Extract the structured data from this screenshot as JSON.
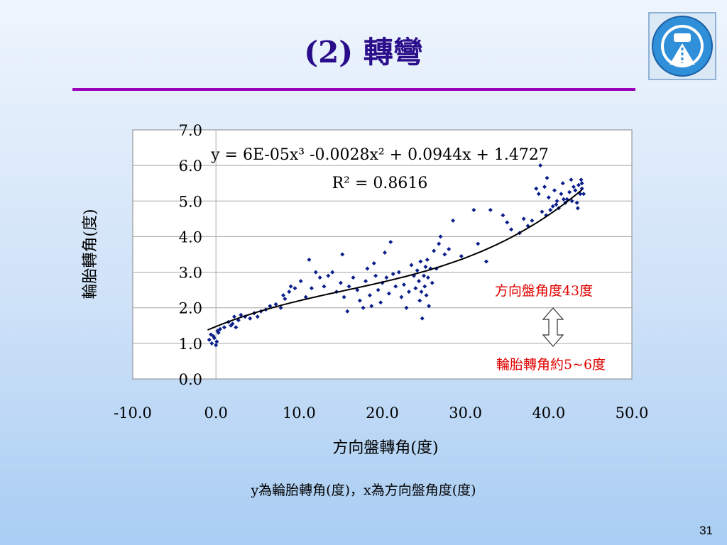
{
  "slide": {
    "title": "(2) 轉彎",
    "caption": "y為輪胎轉角(度)，x為方向盤角度(度)",
    "page_number": "31",
    "title_color": "#2a0d8a",
    "rule_color": "#9b00b8"
  },
  "logo": {
    "icon": "vehicle-center-seal-icon"
  },
  "chart_data": {
    "type": "scatter",
    "xlabel": "方向盤轉角(度)",
    "ylabel": "輪胎轉角(度)",
    "xlim": [
      -10,
      50
    ],
    "ylim": [
      0,
      7
    ],
    "x_ticks": [
      "-10.0",
      "0.0",
      "10.0",
      "20.0",
      "30.0",
      "40.0",
      "50.0"
    ],
    "y_ticks": [
      "0.0",
      "1.0",
      "2.0",
      "3.0",
      "4.0",
      "5.0",
      "6.0",
      "7.0"
    ],
    "grid": "horizontal",
    "point_color": "#0a1e8c",
    "trendline": {
      "type": "polynomial-3",
      "coefficients": [
        6e-05,
        -0.0028,
        0.0944,
        1.4727
      ],
      "x_range": [
        -1,
        44
      ],
      "equation_label": "y = 6E-05x³ -0.0028x² + 0.0944x + 1.4727",
      "r2_label": "R² = 0.8616"
    },
    "annotations": {
      "top": "方向盤角度43度",
      "bottom": "輪胎轉角約5~6度",
      "color": "#e00000"
    },
    "points": [
      [
        -0.8,
        1.1
      ],
      [
        -0.5,
        1.0
      ],
      [
        -0.3,
        1.2
      ],
      [
        0.0,
        0.95
      ],
      [
        0.3,
        1.3
      ],
      [
        -0.6,
        1.25
      ],
      [
        0.1,
        1.05
      ],
      [
        0.5,
        1.4
      ],
      [
        -0.2,
        1.15
      ],
      [
        0.2,
        1.35
      ],
      [
        1.0,
        1.45
      ],
      [
        1.5,
        1.6
      ],
      [
        2.0,
        1.55
      ],
      [
        2.2,
        1.75
      ],
      [
        2.7,
        1.65
      ],
      [
        3.0,
        1.8
      ],
      [
        1.8,
        1.5
      ],
      [
        3.5,
        1.75
      ],
      [
        2.4,
        1.45
      ],
      [
        4.1,
        1.7
      ],
      [
        4.6,
        1.85
      ],
      [
        5.0,
        1.75
      ],
      [
        5.4,
        1.9
      ],
      [
        6.0,
        1.95
      ],
      [
        6.5,
        2.05
      ],
      [
        7.2,
        2.1
      ],
      [
        7.8,
        2.0
      ],
      [
        8.3,
        2.25
      ],
      [
        8.8,
        2.45
      ],
      [
        9.0,
        2.6
      ],
      [
        8.1,
        2.35
      ],
      [
        9.5,
        2.55
      ],
      [
        10.2,
        2.75
      ],
      [
        10.8,
        2.3
      ],
      [
        11.5,
        2.55
      ],
      [
        12.0,
        3.0
      ],
      [
        11.2,
        3.35
      ],
      [
        12.5,
        2.85
      ],
      [
        13.0,
        2.6
      ],
      [
        13.5,
        2.9
      ],
      [
        14.0,
        3.0
      ],
      [
        14.5,
        2.45
      ],
      [
        15.0,
        2.7
      ],
      [
        15.4,
        2.3
      ],
      [
        15.8,
        1.9
      ],
      [
        15.2,
        3.5
      ],
      [
        16.0,
        2.6
      ],
      [
        16.5,
        2.85
      ],
      [
        17.0,
        2.5
      ],
      [
        17.3,
        2.2
      ],
      [
        17.7,
        2.0
      ],
      [
        18.0,
        2.75
      ],
      [
        18.2,
        3.1
      ],
      [
        18.5,
        2.35
      ],
      [
        18.7,
        2.05
      ],
      [
        19.0,
        3.25
      ],
      [
        19.2,
        2.9
      ],
      [
        19.5,
        2.5
      ],
      [
        19.8,
        2.15
      ],
      [
        20.0,
        2.7
      ],
      [
        20.3,
        3.55
      ],
      [
        20.5,
        2.85
      ],
      [
        20.8,
        2.4
      ],
      [
        21.0,
        3.85
      ],
      [
        21.3,
        2.95
      ],
      [
        21.6,
        2.6
      ],
      [
        22.0,
        3.0
      ],
      [
        22.3,
        2.3
      ],
      [
        22.6,
        2.65
      ],
      [
        22.9,
        2.0
      ],
      [
        23.2,
        2.45
      ],
      [
        23.5,
        3.2
      ],
      [
        23.8,
        2.9
      ],
      [
        24.0,
        2.55
      ],
      [
        24.2,
        3.05
      ],
      [
        24.4,
        2.75
      ],
      [
        24.5,
        2.2
      ],
      [
        24.6,
        3.3
      ],
      [
        24.7,
        2.45
      ],
      [
        24.8,
        1.7
      ],
      [
        25.0,
        2.9
      ],
      [
        25.1,
        2.6
      ],
      [
        25.2,
        3.15
      ],
      [
        25.3,
        2.35
      ],
      [
        25.4,
        3.35
      ],
      [
        25.5,
        2.85
      ],
      [
        25.6,
        2.05
      ],
      [
        25.8,
        3.1
      ],
      [
        26.0,
        2.7
      ],
      [
        26.2,
        3.6
      ],
      [
        26.5,
        3.1
      ],
      [
        26.8,
        3.8
      ],
      [
        27.0,
        4.0
      ],
      [
        27.5,
        3.5
      ],
      [
        28.0,
        3.65
      ],
      [
        28.5,
        4.45
      ],
      [
        29.5,
        3.45
      ],
      [
        31.0,
        4.75
      ],
      [
        31.5,
        3.8
      ],
      [
        32.5,
        3.3
      ],
      [
        33.0,
        4.75
      ],
      [
        34.5,
        4.6
      ],
      [
        35.0,
        4.4
      ],
      [
        35.5,
        4.2
      ],
      [
        36.5,
        4.1
      ],
      [
        37.0,
        4.5
      ],
      [
        37.5,
        4.3
      ],
      [
        38.0,
        4.45
      ],
      [
        38.5,
        5.35
      ],
      [
        38.8,
        5.2
      ],
      [
        39.0,
        6.0
      ],
      [
        39.2,
        4.7
      ],
      [
        39.5,
        5.4
      ],
      [
        39.7,
        4.6
      ],
      [
        40.0,
        5.1
      ],
      [
        40.2,
        4.75
      ],
      [
        40.5,
        4.85
      ],
      [
        40.7,
        5.3
      ],
      [
        40.9,
        4.9
      ],
      [
        41.0,
        5.0
      ],
      [
        41.2,
        4.8
      ],
      [
        41.5,
        5.2
      ],
      [
        41.7,
        5.5
      ],
      [
        42.0,
        4.95
      ],
      [
        42.2,
        5.05
      ],
      [
        42.5,
        5.25
      ],
      [
        42.7,
        5.6
      ],
      [
        43.0,
        5.4
      ],
      [
        43.2,
        5.3
      ],
      [
        43.4,
        4.95
      ],
      [
        43.6,
        5.45
      ],
      [
        43.8,
        5.2
      ],
      [
        44.0,
        5.35
      ],
      [
        44.0,
        5.5
      ],
      [
        44.2,
        5.2
      ],
      [
        43.9,
        5.6
      ],
      [
        43.5,
        4.8
      ],
      [
        41.8,
        5.05
      ],
      [
        39.8,
        5.65
      ],
      [
        42.8,
        5.0
      ]
    ]
  }
}
